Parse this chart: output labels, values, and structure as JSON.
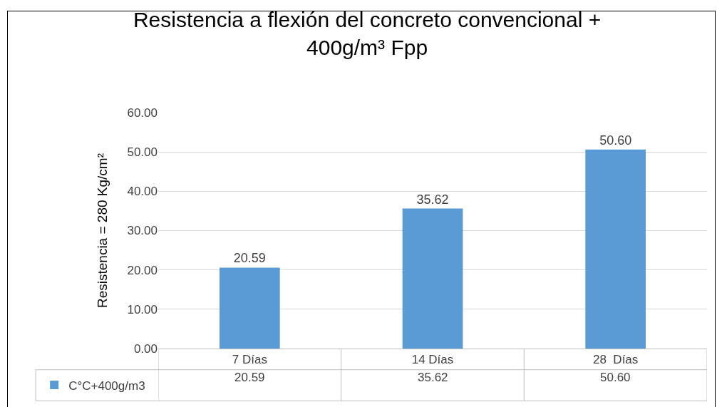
{
  "chart_data": {
    "type": "bar",
    "title": "Resistencia a flexión del concreto convencional +\n400g/m³ Fpp",
    "ylabel": "Resistencia = 280 Kg/cm²",
    "categories": [
      "7 Días",
      "14 Días",
      "28  Días"
    ],
    "series": [
      {
        "name": "C°C+400g/m3",
        "color": "#5b9bd5",
        "values": [
          20.59,
          35.62,
          50.6
        ],
        "value_labels": [
          "20.59",
          "35.62",
          "50.60"
        ]
      }
    ],
    "ylim": [
      0,
      60
    ],
    "yticks": [
      {
        "value": 0,
        "label": "0.00"
      },
      {
        "value": 10,
        "label": "10.00"
      },
      {
        "value": 20,
        "label": "20.00"
      },
      {
        "value": 30,
        "label": "30.00"
      },
      {
        "value": 40,
        "label": "40.00"
      },
      {
        "value": 50,
        "label": "50.00"
      },
      {
        "value": 60,
        "label": "60.00"
      }
    ],
    "grid": "y",
    "legend": "bottom left"
  }
}
